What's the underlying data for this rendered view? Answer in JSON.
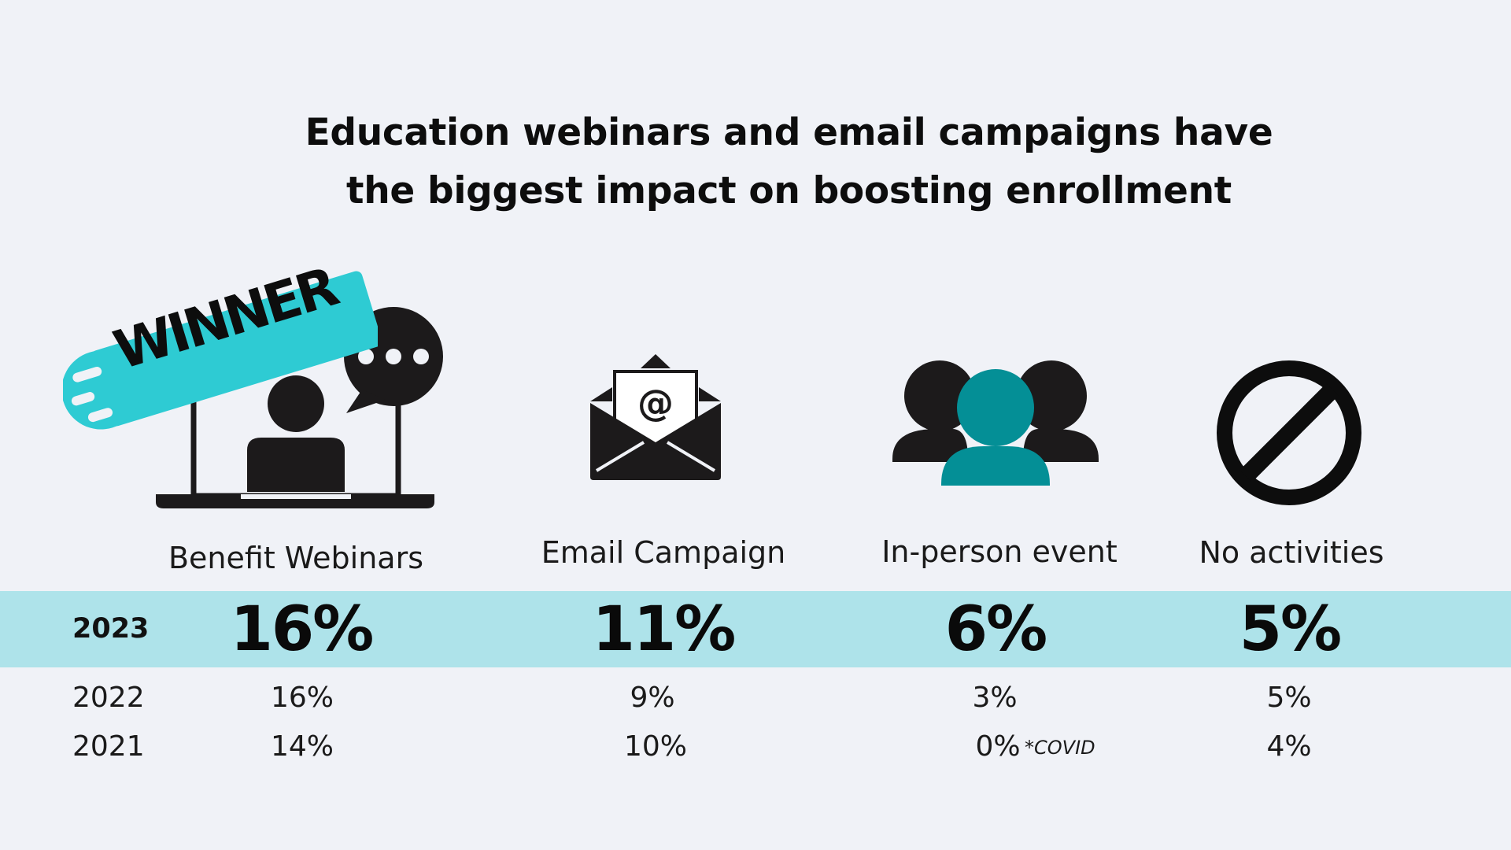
{
  "title_line1": "Education webinars and email campaigns have",
  "title_line2": "the biggest impact on boosting enrollment",
  "badge_text": "WINNER",
  "colors": {
    "background": "#f0f2f7",
    "band": "#aee3ea",
    "badge": "#2ecbd3",
    "teal_person": "#048f96",
    "icon": "#1c1a1b"
  },
  "icons": [
    "laptop-chat-icon",
    "email-envelope-icon",
    "people-group-icon",
    "prohibited-icon"
  ],
  "chart_data": {
    "type": "table",
    "categories": [
      "Benefit Webinars",
      "Email Campaign",
      "In-person event",
      "No activities"
    ],
    "series": [
      {
        "name": "2023",
        "values": [
          "16%",
          "11%",
          "6%",
          "5%"
        ]
      },
      {
        "name": "2022",
        "values": [
          "16%",
          "9%",
          "3%",
          "5%"
        ]
      },
      {
        "name": "2021",
        "values": [
          "14%",
          "10%",
          "0%",
          "4%"
        ]
      }
    ],
    "annotations": [
      "*COVID"
    ]
  }
}
